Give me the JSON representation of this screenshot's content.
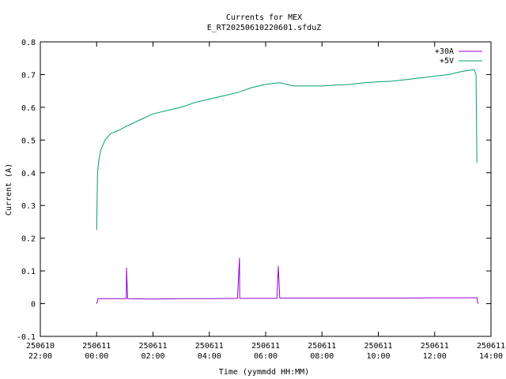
{
  "chart_data": {
    "type": "line",
    "title": "Currents for MEX",
    "subtitle": "E_RT20250610220601.sfduZ",
    "xlabel": "Time (yymmdd HH:MM)",
    "ylabel": "Current (A)",
    "xlim_hours": [
      -2,
      14
    ],
    "ylim": [
      -0.1,
      0.8
    ],
    "yticks": [
      "-0.1",
      "0",
      "0.1",
      "0.2",
      "0.3",
      "0.4",
      "0.5",
      "0.6",
      "0.7",
      "0.8"
    ],
    "ytick_values": [
      -0.1,
      0,
      0.1,
      0.2,
      0.3,
      0.4,
      0.5,
      0.6,
      0.7,
      0.8
    ],
    "xticks": [
      {
        "hour": -2,
        "date": "250610",
        "time": "22:00"
      },
      {
        "hour": 0,
        "date": "250611",
        "time": "00:00"
      },
      {
        "hour": 2,
        "date": "250611",
        "time": "02:00"
      },
      {
        "hour": 4,
        "date": "250611",
        "time": "04:00"
      },
      {
        "hour": 6,
        "date": "250611",
        "time": "06:00"
      },
      {
        "hour": 8,
        "date": "250611",
        "time": "08:00"
      },
      {
        "hour": 10,
        "date": "250611",
        "time": "10:00"
      },
      {
        "hour": 12,
        "date": "250611",
        "time": "12:00"
      },
      {
        "hour": 14,
        "date": "250611",
        "time": "14:00"
      }
    ],
    "grid": false,
    "legend_position": "top-right",
    "series": [
      {
        "name": "+30A",
        "color": "#9400d3",
        "x": [
          0.0,
          0.05,
          0.2,
          1.0,
          1.05,
          1.06,
          1.1,
          2.0,
          3.0,
          4.0,
          5.0,
          5.07,
          5.08,
          5.1,
          6.0,
          6.4,
          6.45,
          6.5,
          7.0,
          8.0,
          9.0,
          10.0,
          11.0,
          12.0,
          13.0,
          13.5,
          13.52,
          13.55
        ],
        "y": [
          0.0,
          0.015,
          0.015,
          0.015,
          0.015,
          0.11,
          0.015,
          0.014,
          0.015,
          0.015,
          0.016,
          0.14,
          0.016,
          0.016,
          0.016,
          0.016,
          0.115,
          0.017,
          0.017,
          0.017,
          0.017,
          0.017,
          0.017,
          0.018,
          0.018,
          0.018,
          0.005,
          0.0
        ]
      },
      {
        "name": "+5V",
        "color": "#009e73",
        "x": [
          0.0,
          0.03,
          0.08,
          0.15,
          0.3,
          0.5,
          0.8,
          1.0,
          1.5,
          2.0,
          2.5,
          3.0,
          3.5,
          4.0,
          4.5,
          5.0,
          5.5,
          6.0,
          6.5,
          7.0,
          7.5,
          8.0,
          8.5,
          9.0,
          9.5,
          10.0,
          10.5,
          11.0,
          11.5,
          12.0,
          12.5,
          13.0,
          13.4,
          13.47,
          13.5
        ],
        "y": [
          0.225,
          0.4,
          0.44,
          0.47,
          0.5,
          0.52,
          0.53,
          0.54,
          0.56,
          0.58,
          0.59,
          0.6,
          0.615,
          0.625,
          0.635,
          0.645,
          0.66,
          0.67,
          0.675,
          0.665,
          0.665,
          0.665,
          0.668,
          0.67,
          0.675,
          0.678,
          0.68,
          0.685,
          0.69,
          0.695,
          0.7,
          0.71,
          0.715,
          0.7,
          0.43
        ]
      }
    ]
  }
}
